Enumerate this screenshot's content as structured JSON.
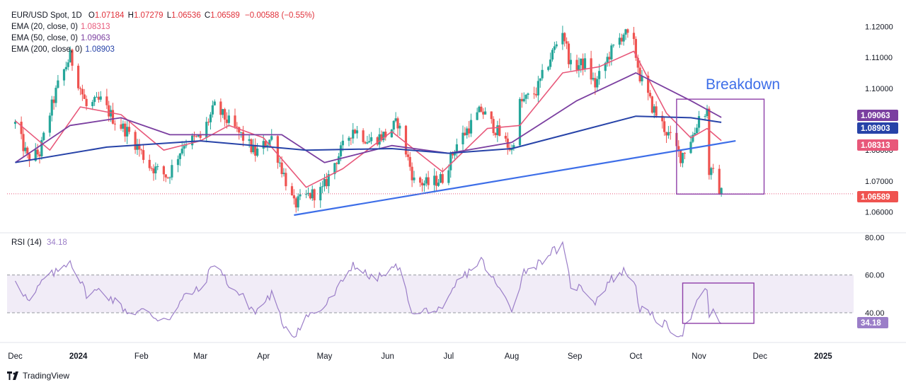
{
  "header": {
    "symbol": "EUR/USD Spot, 1D",
    "o_label": "O",
    "o_value": "1.07184",
    "h_label": "H",
    "h_value": "1.07279",
    "l_label": "L",
    "l_value": "1.06536",
    "c_label": "C",
    "c_value": "1.06589",
    "change": "−0.00588 (−0.55%)",
    "ema20_label": "EMA (20, close, 0)",
    "ema20_value": "1.08313",
    "ema50_label": "EMA (50, close, 0)",
    "ema50_value": "1.09063",
    "ema200_label": "EMA (200, close, 0)",
    "ema200_value": "1.08903"
  },
  "rsi_legend": {
    "label": "RSI (14)",
    "value": "34.18"
  },
  "annotation": {
    "text": "Breakdown"
  },
  "watermark": {
    "text": "TradingView"
  },
  "colors": {
    "up": "#26a69a",
    "down": "#ef5350",
    "ema20": "#e8587a",
    "ema50": "#7b3fa0",
    "ema200": "#2743a8",
    "trendline": "#3d6ee8",
    "rsi": "#9b7ec8",
    "box": "#8e3fa8",
    "annotation": "#3d6ee8",
    "rsi_band": "#f1ecf7"
  },
  "chart_data": [
    {
      "type": "candlestick",
      "title": "EUR/USD Spot, 1D",
      "x_tick_labels": [
        "Dec",
        "2024",
        "Feb",
        "Mar",
        "Apr",
        "May",
        "Jun",
        "Jul",
        "Aug",
        "Sep",
        "Oct",
        "Nov",
        "Dec",
        "2025"
      ],
      "y_tick_labels": [
        "1.12000",
        "1.11000",
        "1.10000",
        "1.08000",
        "1.07000",
        "1.06000"
      ],
      "ylim": [
        1.0535,
        1.124
      ],
      "grid": false,
      "price_labels": [
        {
          "value": 1.09063,
          "text": "1.09063",
          "series": "EMA 50"
        },
        {
          "value": 1.08903,
          "text": "1.08903",
          "series": "EMA 200"
        },
        {
          "value": 1.08313,
          "text": "1.08313",
          "series": "EMA 20"
        },
        {
          "value": 1.06589,
          "text": "1.06589",
          "series": "Close"
        }
      ],
      "close_path": [
        [
          "2023-12-01",
          1.0885
        ],
        [
          "2023-12-07",
          1.0775
        ],
        [
          "2023-12-13",
          1.079
        ],
        [
          "2023-12-18",
          1.092
        ],
        [
          "2023-12-22",
          1.101
        ],
        [
          "2023-12-28",
          1.1105
        ],
        [
          "2024-01-05",
          1.094
        ],
        [
          "2024-01-12",
          1.096
        ],
        [
          "2024-01-19",
          1.0895
        ],
        [
          "2024-01-26",
          1.0855
        ],
        [
          "2024-02-05",
          1.075
        ],
        [
          "2024-02-14",
          1.0715
        ],
        [
          "2024-02-22",
          1.0825
        ],
        [
          "2024-03-01",
          1.084
        ],
        [
          "2024-03-08",
          1.094
        ],
        [
          "2024-03-15",
          1.089
        ],
        [
          "2024-03-22",
          1.084
        ],
        [
          "2024-03-28",
          1.079
        ],
        [
          "2024-04-05",
          1.084
        ],
        [
          "2024-04-10",
          1.074
        ],
        [
          "2024-04-16",
          1.0622
        ],
        [
          "2024-04-22",
          1.065
        ],
        [
          "2024-04-30",
          1.067
        ],
        [
          "2024-05-06",
          1.076
        ],
        [
          "2024-05-15",
          1.087
        ],
        [
          "2024-05-23",
          1.083
        ],
        [
          "2024-05-31",
          1.085
        ],
        [
          "2024-06-06",
          1.089
        ],
        [
          "2024-06-14",
          1.07
        ],
        [
          "2024-06-21",
          1.069
        ],
        [
          "2024-06-28",
          1.071
        ],
        [
          "2024-07-05",
          1.082
        ],
        [
          "2024-07-17",
          1.093
        ],
        [
          "2024-07-26",
          1.085
        ],
        [
          "2024-08-01",
          1.08
        ],
        [
          "2024-08-05",
          1.095
        ],
        [
          "2024-08-13",
          1.099
        ],
        [
          "2024-08-20",
          1.11
        ],
        [
          "2024-08-26",
          1.119
        ],
        [
          "2024-08-30",
          1.107
        ],
        [
          "2024-09-06",
          1.108
        ],
        [
          "2024-09-11",
          1.101
        ],
        [
          "2024-09-18",
          1.111
        ],
        [
          "2024-09-25",
          1.118
        ],
        [
          "2024-09-30",
          1.114
        ],
        [
          "2024-10-03",
          1.104
        ],
        [
          "2024-10-09",
          1.094
        ],
        [
          "2024-10-16",
          1.086
        ],
        [
          "2024-10-23",
          1.078
        ],
        [
          "2024-10-30",
          1.086
        ],
        [
          "2024-11-01",
          1.091
        ],
        [
          "2024-11-05",
          1.093
        ],
        [
          "2024-11-06",
          1.073
        ],
        [
          "2024-11-08",
          1.072
        ],
        [
          "2024-11-12",
          1.0659
        ]
      ],
      "series": [
        {
          "name": "EMA (20, close, 0)",
          "points": [
            [
              "2023-12-01",
              1.0895
            ],
            [
              "2023-12-18",
              1.08
            ],
            [
              "2024-01-02",
              1.094
            ],
            [
              "2024-01-22",
              1.0915
            ],
            [
              "2024-02-12",
              1.08
            ],
            [
              "2024-03-01",
              1.083
            ],
            [
              "2024-03-15",
              1.088
            ],
            [
              "2024-04-01",
              1.084
            ],
            [
              "2024-04-22",
              1.068
            ],
            [
              "2024-05-10",
              1.074
            ],
            [
              "2024-06-03",
              1.086
            ],
            [
              "2024-06-28",
              1.073
            ],
            [
              "2024-07-20",
              1.087
            ],
            [
              "2024-08-05",
              1.088
            ],
            [
              "2024-08-26",
              1.105
            ],
            [
              "2024-09-13",
              1.107
            ],
            [
              "2024-09-30",
              1.112
            ],
            [
              "2024-10-16",
              1.092
            ],
            [
              "2024-10-28",
              1.084
            ],
            [
              "2024-11-05",
              1.087
            ],
            [
              "2024-11-12",
              1.0831
            ]
          ]
        },
        {
          "name": "EMA (50, close, 0)",
          "points": [
            [
              "2023-12-01",
              1.076
            ],
            [
              "2023-12-28",
              1.088
            ],
            [
              "2024-01-22",
              1.0905
            ],
            [
              "2024-02-15",
              1.085
            ],
            [
              "2024-03-15",
              1.085
            ],
            [
              "2024-04-10",
              1.085
            ],
            [
              "2024-05-01",
              1.076
            ],
            [
              "2024-06-03",
              1.0815
            ],
            [
              "2024-07-01",
              1.079
            ],
            [
              "2024-08-01",
              1.0825
            ],
            [
              "2024-09-02",
              1.096
            ],
            [
              "2024-10-01",
              1.105
            ],
            [
              "2024-10-28",
              1.096
            ],
            [
              "2024-11-12",
              1.0906
            ]
          ]
        },
        {
          "name": "EMA (200, close, 0)",
          "points": [
            [
              "2023-12-01",
              1.076
            ],
            [
              "2024-01-15",
              1.081
            ],
            [
              "2024-03-01",
              1.083
            ],
            [
              "2024-04-22",
              1.08
            ],
            [
              "2024-06-03",
              1.0805
            ],
            [
              "2024-07-01",
              1.079
            ],
            [
              "2024-08-01",
              1.0805
            ],
            [
              "2024-09-02",
              1.086
            ],
            [
              "2024-10-01",
              1.091
            ],
            [
              "2024-10-28",
              1.0905
            ],
            [
              "2024-11-12",
              1.089
            ]
          ]
        },
        {
          "name": "Trendline",
          "points": [
            [
              "2024-04-16",
              1.059
            ],
            [
              "2024-11-19",
              1.083
            ]
          ]
        }
      ]
    },
    {
      "type": "line",
      "title": "RSI (14)",
      "x_tick_labels": [
        "Dec",
        "2024",
        "Feb",
        "Mar",
        "Apr",
        "May",
        "Jun",
        "Jul",
        "Aug",
        "Sep",
        "Oct",
        "Nov",
        "Dec",
        "2025"
      ],
      "y_tick_labels": [
        "80.00",
        "60.00",
        "40.00",
        "34.18"
      ],
      "ylim": [
        25,
        82
      ],
      "bands": [
        60,
        40
      ],
      "series": [
        {
          "name": "RSI (14)",
          "points": [
            [
              "2023-12-01",
              58
            ],
            [
              "2023-12-08",
              45
            ],
            [
              "2023-12-15",
              58
            ],
            [
              "2023-12-22",
              62
            ],
            [
              "2023-12-28",
              68
            ],
            [
              "2024-01-05",
              50
            ],
            [
              "2024-01-12",
              52
            ],
            [
              "2024-01-19",
              46
            ],
            [
              "2024-01-26",
              40
            ],
            [
              "2024-02-02",
              41
            ],
            [
              "2024-02-09",
              37
            ],
            [
              "2024-02-16",
              38
            ],
            [
              "2024-02-23",
              50
            ],
            [
              "2024-03-01",
              52
            ],
            [
              "2024-03-08",
              67
            ],
            [
              "2024-03-15",
              55
            ],
            [
              "2024-03-22",
              48
            ],
            [
              "2024-03-28",
              40
            ],
            [
              "2024-04-05",
              50
            ],
            [
              "2024-04-10",
              35
            ],
            [
              "2024-04-16",
              28
            ],
            [
              "2024-04-22",
              38
            ],
            [
              "2024-04-30",
              42
            ],
            [
              "2024-05-06",
              50
            ],
            [
              "2024-05-15",
              66
            ],
            [
              "2024-05-24",
              58
            ],
            [
              "2024-05-31",
              60
            ],
            [
              "2024-06-06",
              65
            ],
            [
              "2024-06-14",
              38
            ],
            [
              "2024-06-21",
              42
            ],
            [
              "2024-06-28",
              40
            ],
            [
              "2024-07-05",
              56
            ],
            [
              "2024-07-17",
              68
            ],
            [
              "2024-07-26",
              52
            ],
            [
              "2024-08-01",
              42
            ],
            [
              "2024-08-07",
              62
            ],
            [
              "2024-08-14",
              66
            ],
            [
              "2024-08-20",
              72
            ],
            [
              "2024-08-26",
              75
            ],
            [
              "2024-08-30",
              55
            ],
            [
              "2024-09-06",
              52
            ],
            [
              "2024-09-11",
              46
            ],
            [
              "2024-09-18",
              57
            ],
            [
              "2024-09-25",
              62
            ],
            [
              "2024-09-30",
              58
            ],
            [
              "2024-10-03",
              42
            ],
            [
              "2024-10-09",
              38
            ],
            [
              "2024-10-16",
              33
            ],
            [
              "2024-10-23",
              28
            ],
            [
              "2024-10-30",
              42
            ],
            [
              "2024-11-01",
              47
            ],
            [
              "2024-11-05",
              53
            ],
            [
              "2024-11-06",
              38
            ],
            [
              "2024-11-08",
              40
            ],
            [
              "2024-11-12",
              34.18
            ]
          ]
        }
      ]
    }
  ]
}
